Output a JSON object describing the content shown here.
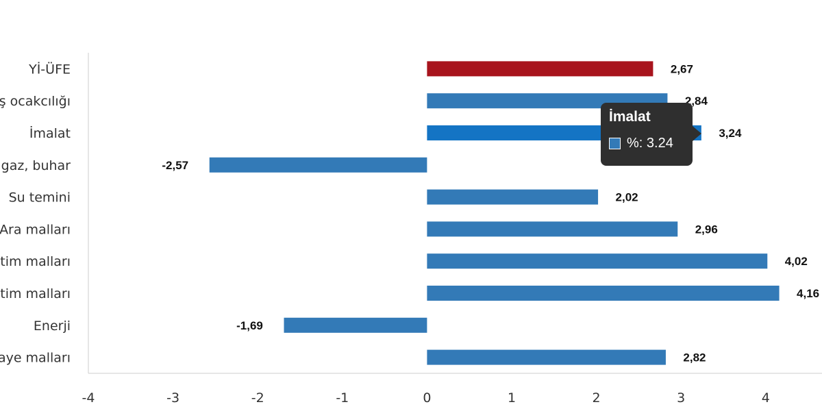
{
  "chart_data": {
    "type": "bar",
    "orientation": "horizontal",
    "categories": [
      "Yİ-ÜFE",
      "ş ocakcılığı",
      "İmalat",
      "gaz, buhar",
      "Su temini",
      "Ara malları",
      "tim malları",
      "tim malları",
      "Enerji",
      "aye malları"
    ],
    "values": [
      2.67,
      2.84,
      3.24,
      -2.57,
      2.02,
      2.96,
      4.02,
      4.16,
      -1.69,
      2.82
    ],
    "value_labels": [
      "2,67",
      "2,84",
      "3,24",
      "-2,57",
      "2,02",
      "2,96",
      "4,02",
      "4,16",
      "-1,69",
      "2,82"
    ],
    "xlim": [
      -4,
      4.6
    ],
    "x_ticks": [
      "-4",
      "-3",
      "-2",
      "-1",
      "0",
      "1",
      "2",
      "3",
      "4"
    ],
    "highlight_index": 0,
    "hover_index": 2,
    "colors": {
      "bar": "#337ab7",
      "highlight": "#a8141d",
      "hover": "#1474c4",
      "axis": "#cccccc"
    },
    "grid": false,
    "legend": "none"
  },
  "tooltip": {
    "title": "İmalat",
    "value_text": "%: 3.24"
  }
}
